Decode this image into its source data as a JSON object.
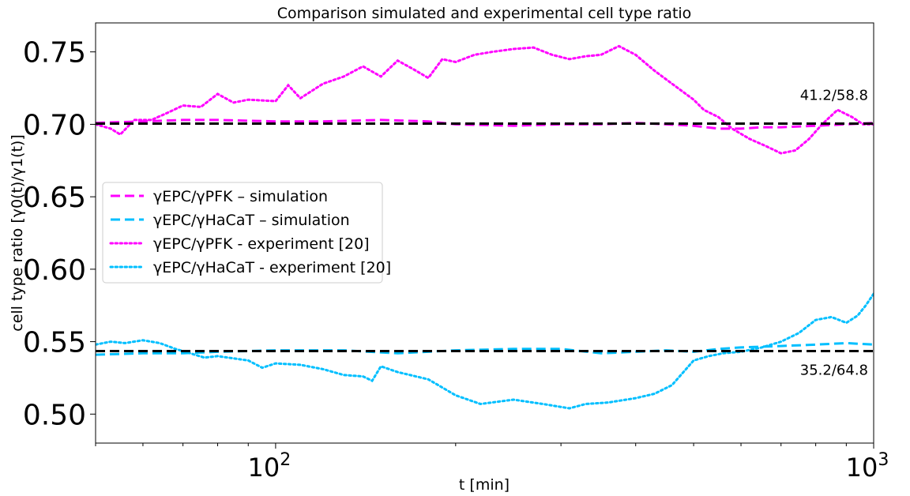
{
  "chart_data": {
    "type": "line",
    "title": "Comparison simulated and experimental cell type ratio",
    "xlabel": "t [min]",
    "ylabel": "cell type ratio [γ0(t)/γ1(t)]",
    "xscale": "log",
    "xlim": [
      50,
      1000
    ],
    "ylim": [
      0.48,
      0.77
    ],
    "x_ticks": [
      {
        "value": 100,
        "base": "10",
        "exp": "2"
      },
      {
        "value": 1000,
        "base": "10",
        "exp": "3"
      }
    ],
    "y_ticks": [
      "0.50",
      "0.55",
      "0.60",
      "0.65",
      "0.70",
      "0.75"
    ],
    "grid": false,
    "legend_position": "center-left",
    "reference_lines": [
      {
        "y": 0.7005,
        "color": "#000000",
        "style": "dashed",
        "label": "41.2/58.8"
      },
      {
        "y": 0.5435,
        "color": "#000000",
        "style": "dashed",
        "label": "35.2/64.8"
      }
    ],
    "series": [
      {
        "name": "γEPC/γPFK – simulation",
        "color": "#ff00ff",
        "style": "dashed",
        "points": [
          [
            50,
            0.701
          ],
          [
            60,
            0.702
          ],
          [
            70,
            0.703
          ],
          [
            80,
            0.703
          ],
          [
            100,
            0.702
          ],
          [
            120,
            0.702
          ],
          [
            150,
            0.703
          ],
          [
            180,
            0.702
          ],
          [
            200,
            0.7
          ],
          [
            250,
            0.699
          ],
          [
            300,
            0.7
          ],
          [
            350,
            0.7
          ],
          [
            400,
            0.701
          ],
          [
            450,
            0.7
          ],
          [
            500,
            0.699
          ],
          [
            550,
            0.697
          ],
          [
            600,
            0.697
          ],
          [
            650,
            0.698
          ],
          [
            700,
            0.698
          ],
          [
            800,
            0.699
          ],
          [
            900,
            0.7
          ],
          [
            1000,
            0.701
          ]
        ]
      },
      {
        "name": "γEPC/γHaCaT – simulation",
        "color": "#00bfff",
        "style": "dashed",
        "points": [
          [
            50,
            0.541
          ],
          [
            60,
            0.542
          ],
          [
            70,
            0.542
          ],
          [
            80,
            0.543
          ],
          [
            100,
            0.544
          ],
          [
            130,
            0.544
          ],
          [
            160,
            0.542
          ],
          [
            200,
            0.544
          ],
          [
            250,
            0.545
          ],
          [
            300,
            0.545
          ],
          [
            350,
            0.542
          ],
          [
            400,
            0.543
          ],
          [
            450,
            0.544
          ],
          [
            500,
            0.543
          ],
          [
            550,
            0.545
          ],
          [
            600,
            0.546
          ],
          [
            700,
            0.547
          ],
          [
            800,
            0.548
          ],
          [
            900,
            0.549
          ],
          [
            1000,
            0.548
          ]
        ]
      },
      {
        "name": "γEPC/γPFK - experiment [20]",
        "color": "#ff00ff",
        "style": "dotted",
        "points": [
          [
            50,
            0.7
          ],
          [
            53,
            0.697
          ],
          [
            55,
            0.693
          ],
          [
            58,
            0.703
          ],
          [
            62,
            0.703
          ],
          [
            66,
            0.708
          ],
          [
            70,
            0.713
          ],
          [
            75,
            0.712
          ],
          [
            80,
            0.721
          ],
          [
            85,
            0.715
          ],
          [
            90,
            0.717
          ],
          [
            100,
            0.716
          ],
          [
            105,
            0.727
          ],
          [
            110,
            0.718
          ],
          [
            120,
            0.728
          ],
          [
            130,
            0.733
          ],
          [
            140,
            0.74
          ],
          [
            150,
            0.733
          ],
          [
            160,
            0.744
          ],
          [
            170,
            0.738
          ],
          [
            180,
            0.732
          ],
          [
            190,
            0.745
          ],
          [
            200,
            0.743
          ],
          [
            215,
            0.748
          ],
          [
            230,
            0.75
          ],
          [
            250,
            0.752
          ],
          [
            270,
            0.753
          ],
          [
            290,
            0.748
          ],
          [
            310,
            0.745
          ],
          [
            330,
            0.747
          ],
          [
            350,
            0.748
          ],
          [
            375,
            0.754
          ],
          [
            400,
            0.748
          ],
          [
            430,
            0.737
          ],
          [
            460,
            0.728
          ],
          [
            500,
            0.717
          ],
          [
            520,
            0.71
          ],
          [
            550,
            0.705
          ],
          [
            580,
            0.697
          ],
          [
            620,
            0.69
          ],
          [
            660,
            0.685
          ],
          [
            700,
            0.68
          ],
          [
            740,
            0.682
          ],
          [
            780,
            0.69
          ],
          [
            820,
            0.7
          ],
          [
            870,
            0.71
          ],
          [
            920,
            0.705
          ],
          [
            960,
            0.7
          ],
          [
            1000,
            0.7
          ]
        ]
      },
      {
        "name": "γEPC/γHaCaT - experiment [20]",
        "color": "#00bfff",
        "style": "dotted",
        "points": [
          [
            50,
            0.548
          ],
          [
            53,
            0.55
          ],
          [
            56,
            0.549
          ],
          [
            60,
            0.551
          ],
          [
            64,
            0.549
          ],
          [
            68,
            0.545
          ],
          [
            72,
            0.542
          ],
          [
            76,
            0.539
          ],
          [
            80,
            0.54
          ],
          [
            90,
            0.537
          ],
          [
            95,
            0.532
          ],
          [
            100,
            0.535
          ],
          [
            110,
            0.534
          ],
          [
            120,
            0.531
          ],
          [
            130,
            0.527
          ],
          [
            140,
            0.526
          ],
          [
            145,
            0.523
          ],
          [
            150,
            0.533
          ],
          [
            160,
            0.529
          ],
          [
            180,
            0.524
          ],
          [
            200,
            0.513
          ],
          [
            220,
            0.507
          ],
          [
            250,
            0.51
          ],
          [
            280,
            0.507
          ],
          [
            310,
            0.504
          ],
          [
            330,
            0.507
          ],
          [
            360,
            0.508
          ],
          [
            400,
            0.511
          ],
          [
            430,
            0.514
          ],
          [
            460,
            0.52
          ],
          [
            500,
            0.537
          ],
          [
            530,
            0.54
          ],
          [
            560,
            0.542
          ],
          [
            600,
            0.543
          ],
          [
            650,
            0.546
          ],
          [
            700,
            0.55
          ],
          [
            750,
            0.556
          ],
          [
            800,
            0.565
          ],
          [
            850,
            0.567
          ],
          [
            900,
            0.563
          ],
          [
            940,
            0.568
          ],
          [
            970,
            0.575
          ],
          [
            1000,
            0.583
          ]
        ]
      }
    ]
  }
}
